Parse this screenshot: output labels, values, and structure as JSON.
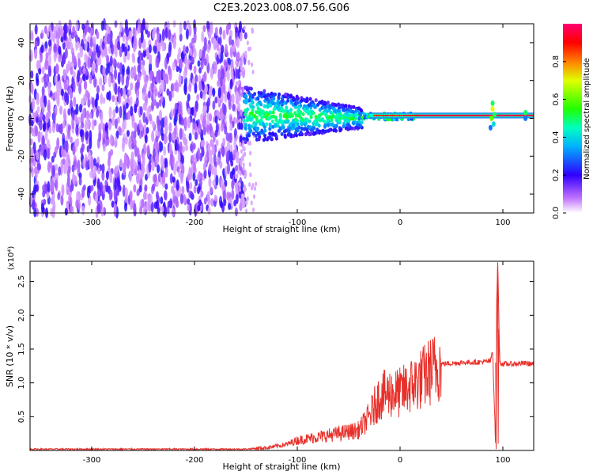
{
  "chart_data": [
    {
      "type": "heatmap",
      "title": "C2E3.2023.008.07.56.G06",
      "xlabel": "Height of straight line (km)",
      "ylabel": "Frequency (Hz)",
      "xlim": [
        -360,
        130
      ],
      "ylim": [
        -50,
        50
      ],
      "xticks": [
        "-300",
        "-200",
        "-100",
        "0",
        "100"
      ],
      "yticks": [
        "40",
        "20",
        "0",
        "-20",
        "-40"
      ],
      "colorbar": {
        "label": "Normalized spectral amplitude",
        "range": [
          0,
          1
        ],
        "ticks": [
          "0.0",
          "0.2",
          "0.4",
          "0.6",
          "0.8"
        ],
        "colormap": "rainbow (white-purple-blue-cyan-green-yellow-red-magenta)"
      },
      "features": [
        {
          "x_range": [
            -360,
            -150
          ],
          "frequency_spread": [
            -50,
            50
          ],
          "amplitude": "low (0.1-0.3), noise"
        },
        {
          "x_range": [
            -150,
            -40
          ],
          "frequency_center": [
            2,
            0
          ],
          "amplitude": "0.3-0.6, broadening narrowing"
        },
        {
          "x_range": [
            -40,
            130
          ],
          "frequency_center": 1.5,
          "amplitude": "0.9-1.0, narrow line"
        },
        {
          "x_range": [
            85,
            95
          ],
          "frequency_excursion": [
            -5,
            8
          ],
          "amplitude": "disturbance"
        }
      ]
    },
    {
      "type": "line",
      "xlabel": "Height of straight line (km)",
      "ylabel": "SNR (10 * v/v)",
      "scale_label": "(x10⁴)",
      "xlim": [
        -360,
        130
      ],
      "ylim": [
        0,
        2.8
      ],
      "xticks": [
        "-300",
        "-200",
        "-100",
        "0",
        "100"
      ],
      "yticks": [
        "2.5",
        "2.0",
        "1.5",
        "1.0",
        "0.5"
      ],
      "series_color": "#e8302a",
      "x": [
        -360,
        -300,
        -200,
        -150,
        -130,
        -110,
        -100,
        -80,
        -60,
        -40,
        -30,
        -20,
        -10,
        0,
        10,
        20,
        30,
        40,
        60,
        80,
        88,
        90,
        93,
        95,
        97,
        100,
        110,
        120,
        130
      ],
      "y": [
        0.02,
        0.02,
        0.02,
        0.02,
        0.04,
        0.09,
        0.15,
        0.2,
        0.25,
        0.3,
        0.5,
        0.8,
        0.85,
        0.85,
        0.95,
        1.05,
        1.18,
        1.28,
        1.3,
        1.31,
        1.32,
        1.5,
        0.05,
        2.8,
        1.3,
        1.28,
        1.28,
        1.29,
        1.28
      ]
    }
  ]
}
